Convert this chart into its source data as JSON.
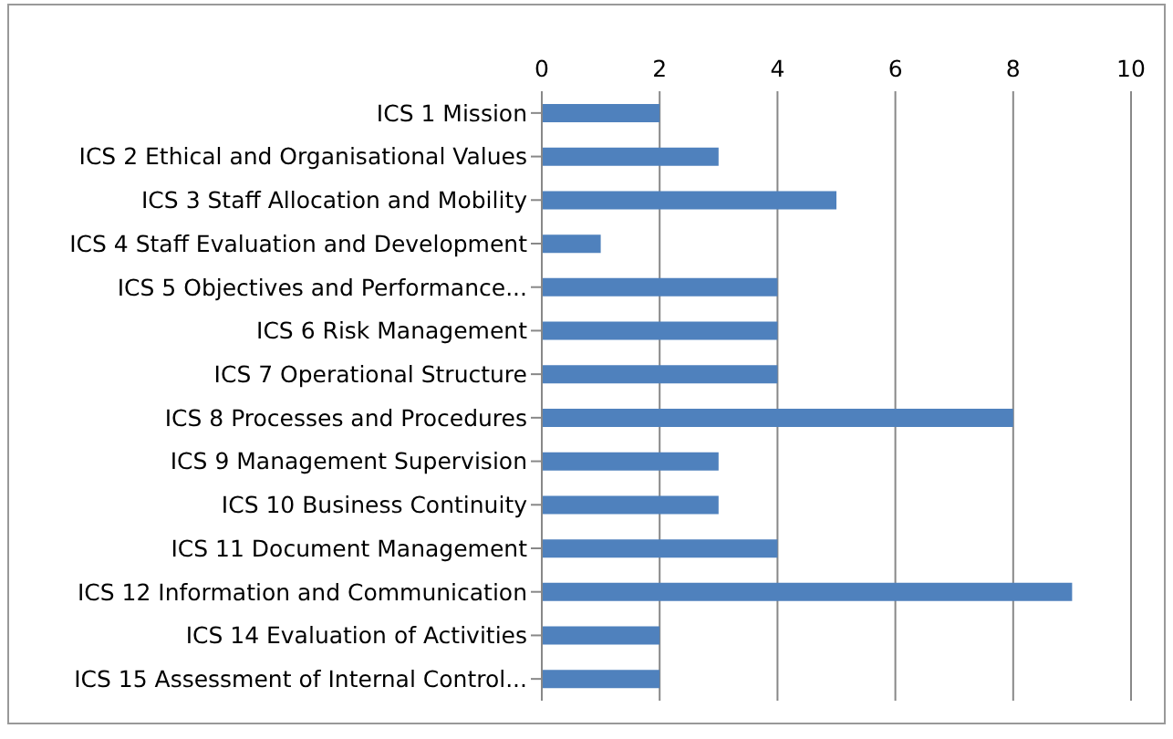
{
  "chart_data": {
    "type": "bar",
    "orientation": "horizontal",
    "categories": [
      "ICS 1 Mission",
      "ICS 2 Ethical and Organisational Values",
      "ICS 3 Staff Allocation and Mobility",
      "ICS 4 Staff Evaluation and Development",
      "ICS 5 Objectives and Performance...",
      "ICS 6 Risk Management",
      "ICS 7 Operational Structure",
      "ICS 8 Processes and Procedures",
      "ICS 9 Management Supervision",
      "ICS 10 Business Continuity",
      "ICS 11 Document Management",
      "ICS 12 Information and Communication",
      "ICS 14 Evaluation of Activities",
      "ICS 15 Assessment of Internal Control..."
    ],
    "values": [
      2,
      3,
      5,
      1,
      4,
      4,
      4,
      8,
      3,
      3,
      4,
      9,
      2,
      2
    ],
    "color": "#4f81bd",
    "xlim": [
      0,
      10
    ],
    "xticks": [
      0,
      2,
      4,
      6,
      8,
      10
    ],
    "grid": "x"
  }
}
